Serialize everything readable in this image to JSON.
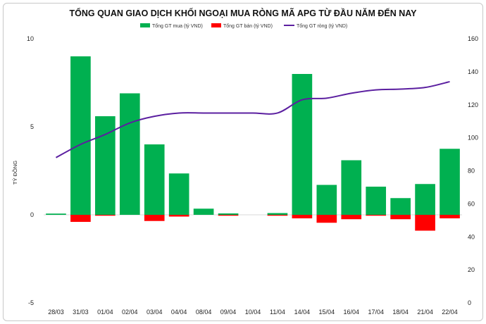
{
  "chart_data": {
    "type": "bar",
    "title": "TỔNG QUAN GIAO DỊCH KHỐI NGOẠI MUA RÒNG MÃ APG TỪ ĐẦU NĂM ĐẾN NAY",
    "ylabel": "TỶ ĐỒNG",
    "categories": [
      "28/03",
      "31/03",
      "01/04",
      "02/04",
      "03/04",
      "04/04",
      "08/04",
      "09/04",
      "10/04",
      "11/04",
      "14/04",
      "15/04",
      "16/04",
      "17/04",
      "18/04",
      "21/04",
      "22/04"
    ],
    "ylim": [
      -5,
      10
    ],
    "yticks": [
      "-5",
      "0",
      "5",
      "10"
    ],
    "y2lim": [
      0,
      160
    ],
    "y2ticks": [
      "0",
      "20",
      "40",
      "60",
      "80",
      "100",
      "120",
      "140",
      "160"
    ],
    "series": [
      {
        "name": "Tổng GT mua (tỷ VND)",
        "type": "bar",
        "axis": "left",
        "color": "#00b050",
        "values": [
          0.07,
          9.0,
          5.6,
          6.9,
          4.0,
          2.35,
          0.35,
          0.08,
          0.0,
          0.1,
          8.0,
          1.7,
          3.1,
          1.6,
          0.95,
          1.75,
          3.75
        ]
      },
      {
        "name": "Tổng GT bán (tỷ VND)",
        "type": "bar",
        "axis": "left",
        "color": "#ff0000",
        "values": [
          0.0,
          -0.4,
          -0.05,
          0.0,
          -0.35,
          -0.1,
          0.0,
          -0.05,
          0.0,
          -0.05,
          -0.2,
          -0.45,
          -0.25,
          -0.05,
          -0.25,
          -0.9,
          -0.2
        ]
      },
      {
        "name": "Tổng GT ròng (tỷ VND)",
        "type": "line",
        "axis": "right",
        "color": "#5b1fa0",
        "values": [
          88,
          96,
          102,
          109,
          113,
          115,
          115,
          115,
          115,
          115,
          123,
          124,
          127,
          129,
          129.5,
          130.5,
          134
        ]
      }
    ]
  }
}
